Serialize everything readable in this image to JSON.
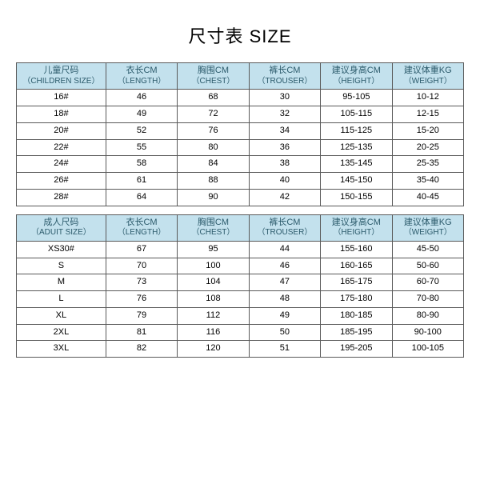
{
  "title": "尺寸表 SIZE",
  "colors": {
    "header_bg": "#c3e1ed",
    "header_text": "#2b5a6b",
    "border": "#5a5a5a",
    "background": "#ffffff"
  },
  "children_table": {
    "headers": [
      {
        "cn": "儿童尺码",
        "en": "（CHILDREN SIZE）"
      },
      {
        "cn": "衣长CM",
        "en": "（LENGTH）"
      },
      {
        "cn": "胸围CM",
        "en": "（CHEST）"
      },
      {
        "cn": "裤长CM",
        "en": "（TROUSER）"
      },
      {
        "cn": "建议身高CM",
        "en": "（HEIGHT）"
      },
      {
        "cn": "建议体重KG",
        "en": "（WEIGHT）"
      }
    ],
    "rows": [
      [
        "16#",
        "46",
        "68",
        "30",
        "95-105",
        "10-12"
      ],
      [
        "18#",
        "49",
        "72",
        "32",
        "105-115",
        "12-15"
      ],
      [
        "20#",
        "52",
        "76",
        "34",
        "115-125",
        "15-20"
      ],
      [
        "22#",
        "55",
        "80",
        "36",
        "125-135",
        "20-25"
      ],
      [
        "24#",
        "58",
        "84",
        "38",
        "135-145",
        "25-35"
      ],
      [
        "26#",
        "61",
        "88",
        "40",
        "145-150",
        "35-40"
      ],
      [
        "28#",
        "64",
        "90",
        "42",
        "150-155",
        "40-45"
      ]
    ]
  },
  "adult_table": {
    "headers": [
      {
        "cn": "成人尺码",
        "en": "（ADUIT SIZE）"
      },
      {
        "cn": "衣长CM",
        "en": "（LENGTH）"
      },
      {
        "cn": "胸围CM",
        "en": "（CHEST）"
      },
      {
        "cn": "裤长CM",
        "en": "（TROUSER）"
      },
      {
        "cn": "建议身高CM",
        "en": "（HEIGHT）"
      },
      {
        "cn": "建议体重KG",
        "en": "（WEIGHT）"
      }
    ],
    "rows": [
      [
        "XS30#",
        "67",
        "95",
        "44",
        "155-160",
        "45-50"
      ],
      [
        "S",
        "70",
        "100",
        "46",
        "160-165",
        "50-60"
      ],
      [
        "M",
        "73",
        "104",
        "47",
        "165-175",
        "60-70"
      ],
      [
        "L",
        "76",
        "108",
        "48",
        "175-180",
        "70-80"
      ],
      [
        "XL",
        "79",
        "112",
        "49",
        "180-185",
        "80-90"
      ],
      [
        "2XL",
        "81",
        "116",
        "50",
        "185-195",
        "90-100"
      ],
      [
        "3XL",
        "82",
        "120",
        "51",
        "195-205",
        "100-105"
      ]
    ]
  }
}
